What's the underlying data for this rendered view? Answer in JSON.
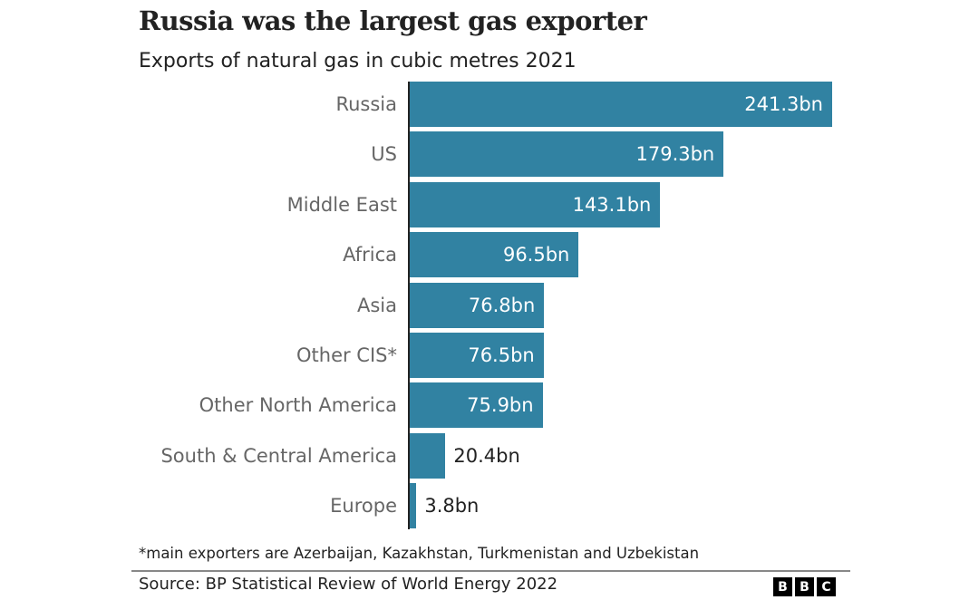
{
  "chart_data": {
    "type": "bar",
    "orientation": "horizontal",
    "title": "Russia was the largest gas exporter",
    "subtitle": "Exports of natural gas in cubic metres 2021",
    "categories": [
      "Russia",
      "US",
      "Middle East",
      "Africa",
      "Asia",
      "Other CIS*",
      "Other North America",
      "South & Central America",
      "Europe"
    ],
    "values": [
      241.3,
      179.3,
      143.1,
      96.5,
      76.8,
      76.5,
      75.9,
      20.4,
      3.8
    ],
    "data_labels": [
      "241.3bn",
      "179.3bn",
      "143.1bn",
      "96.5bn",
      "76.8bn",
      "76.5bn",
      "75.9bn",
      "20.4bn",
      "3.8bn"
    ],
    "unit": "bn",
    "xlim": [
      0,
      241.3
    ],
    "grid": false,
    "bar_color": "#3182a2",
    "footnote": "*main exporters are Azerbaijan, Kazakhstan, Turkmenistan and Uzbekistan",
    "source": "Source: BP Statistical Review of World Energy 2022"
  },
  "logo": {
    "text": "BBC",
    "letters": [
      "B",
      "B",
      "C"
    ]
  }
}
